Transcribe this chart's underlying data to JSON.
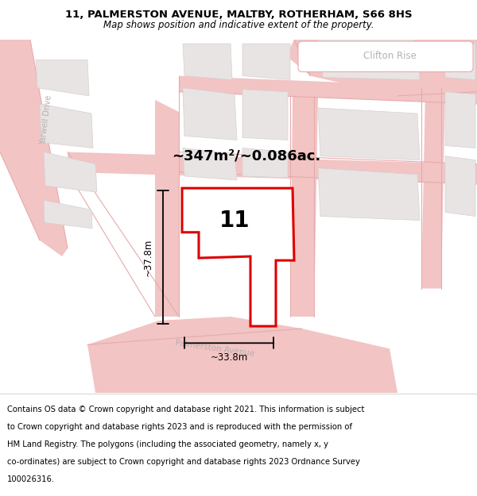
{
  "title": "11, PALMERSTON AVENUE, MALTBY, ROTHERHAM, S66 8HS",
  "subtitle": "Map shows position and indicative extent of the property.",
  "area_text": "~347m²/~0.086ac.",
  "width_text": "~33.8m",
  "height_text": "~37.8m",
  "number_text": "11",
  "map_bg": "#f7f5f5",
  "road_color": "#f2c4c4",
  "road_line_color": "#e8aaaa",
  "block_color": "#e8e4e4",
  "block_border": "#d8d0d0",
  "highlight_color": "#dd0000",
  "label_color": "#b8b0b0",
  "title_fontsize": 9.5,
  "subtitle_fontsize": 8.5,
  "footer_fontsize": 7.2,
  "footer_lines": [
    "Contains OS data © Crown copyright and database right 2021. This information is subject",
    "to Crown copyright and database rights 2023 and is reproduced with the permission of",
    "HM Land Registry. The polygons (including the associated geometry, namely x, y",
    "co-ordinates) are subject to Crown copyright and database rights 2023 Ordnance Survey",
    "100026316."
  ]
}
